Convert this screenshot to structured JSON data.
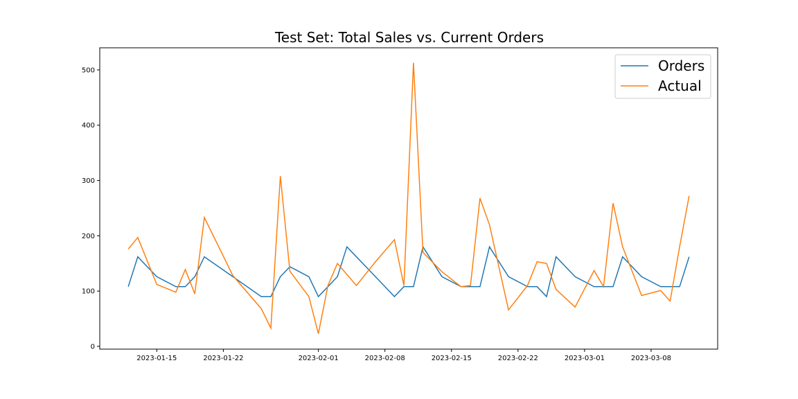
{
  "chart_data": {
    "type": "line",
    "title": "Test Set: Total Sales vs. Current Orders",
    "xlabel": "",
    "ylabel": "",
    "x_axis_type": "date",
    "x_ticks": [
      "2023-01-15",
      "2023-01-22",
      "2023-02-01",
      "2023-02-08",
      "2023-02-15",
      "2023-02-22",
      "2023-03-01",
      "2023-03-08"
    ],
    "y_ticks": [
      0,
      100,
      200,
      300,
      400,
      500
    ],
    "xlim": [
      "2023-01-09",
      "2023-03-15"
    ],
    "ylim": [
      -5,
      540
    ],
    "grid": false,
    "legend_position": "top-right",
    "x": [
      "2023-01-12",
      "2023-01-13",
      "2023-01-15",
      "2023-01-17",
      "2023-01-18",
      "2023-01-19",
      "2023-01-20",
      "2023-01-23",
      "2023-01-26",
      "2023-01-27",
      "2023-01-28",
      "2023-01-29",
      "2023-01-31",
      "2023-02-01",
      "2023-02-02",
      "2023-02-03",
      "2023-02-04",
      "2023-02-05",
      "2023-02-07",
      "2023-02-09",
      "2023-02-10",
      "2023-02-11",
      "2023-02-12",
      "2023-02-14",
      "2023-02-16",
      "2023-02-17",
      "2023-02-18",
      "2023-02-19",
      "2023-02-21",
      "2023-02-23",
      "2023-02-24",
      "2023-02-25",
      "2023-02-26",
      "2023-02-28",
      "2023-03-02",
      "2023-03-03",
      "2023-03-04",
      "2023-03-05",
      "2023-03-07",
      "2023-03-09",
      "2023-03-10",
      "2023-03-11",
      "2023-03-12"
    ],
    "series": [
      {
        "name": "Orders",
        "color": "#1f77b4",
        "values": [
          108,
          162,
          126,
          108,
          108,
          126,
          162,
          126,
          90,
          90,
          126,
          144,
          126,
          90,
          108,
          126,
          180,
          162,
          126,
          90,
          108,
          108,
          180,
          126,
          108,
          108,
          108,
          180,
          126,
          108,
          108,
          90,
          162,
          126,
          108,
          108,
          108,
          162,
          126,
          108,
          108,
          108,
          162
        ]
      },
      {
        "name": "Actual",
        "color": "#ff7f0e",
        "values": [
          176,
          197,
          112,
          98,
          139,
          95,
          233,
          128,
          68,
          33,
          308,
          136,
          90,
          23,
          110,
          150,
          130,
          110,
          153,
          193,
          110,
          513,
          170,
          135,
          108,
          110,
          268,
          220,
          66,
          110,
          153,
          150,
          103,
          71,
          137,
          108,
          259,
          180,
          92,
          101,
          82,
          180,
          272
        ]
      }
    ]
  }
}
